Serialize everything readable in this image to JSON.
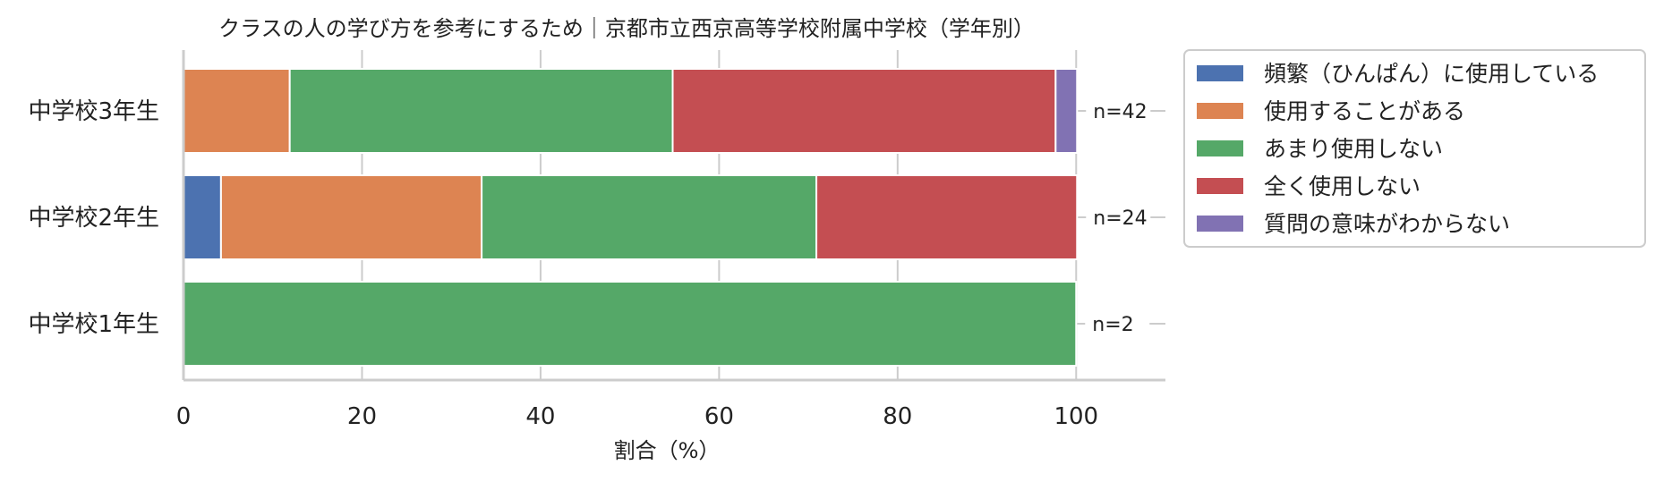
{
  "chart_data": {
    "type": "bar",
    "orientation": "horizontal",
    "stacked": true,
    "title": "クラスの人の学び方を参考にするため｜京都市立西京高等学校附属中学校（学年別）",
    "xlabel": "割合（%）",
    "ylabel": "",
    "xlim": [
      0,
      110
    ],
    "xticks": [
      0,
      20,
      40,
      60,
      80,
      100
    ],
    "grid": true,
    "legend_position": "outside-right",
    "categories": [
      "中学校3年生",
      "中学校2年生",
      "中学校1年生"
    ],
    "n_labels": [
      "n=42",
      "n=24",
      "n=2"
    ],
    "series": [
      {
        "name": "頻繁（ひんぱん）に使用している",
        "color": "#4c72b0",
        "values": [
          0,
          4.2,
          0
        ]
      },
      {
        "name": "使用することがある",
        "color": "#dd8452",
        "values": [
          11.9,
          29.2,
          0
        ]
      },
      {
        "name": "あまり使用しない",
        "color": "#55a868",
        "values": [
          42.9,
          37.5,
          100
        ]
      },
      {
        "name": "全く使用しない",
        "color": "#c44e52",
        "values": [
          42.9,
          29.2,
          0
        ]
      },
      {
        "name": "質問の意味がわからない",
        "color": "#8172b3",
        "values": [
          2.4,
          0,
          0
        ]
      }
    ]
  }
}
